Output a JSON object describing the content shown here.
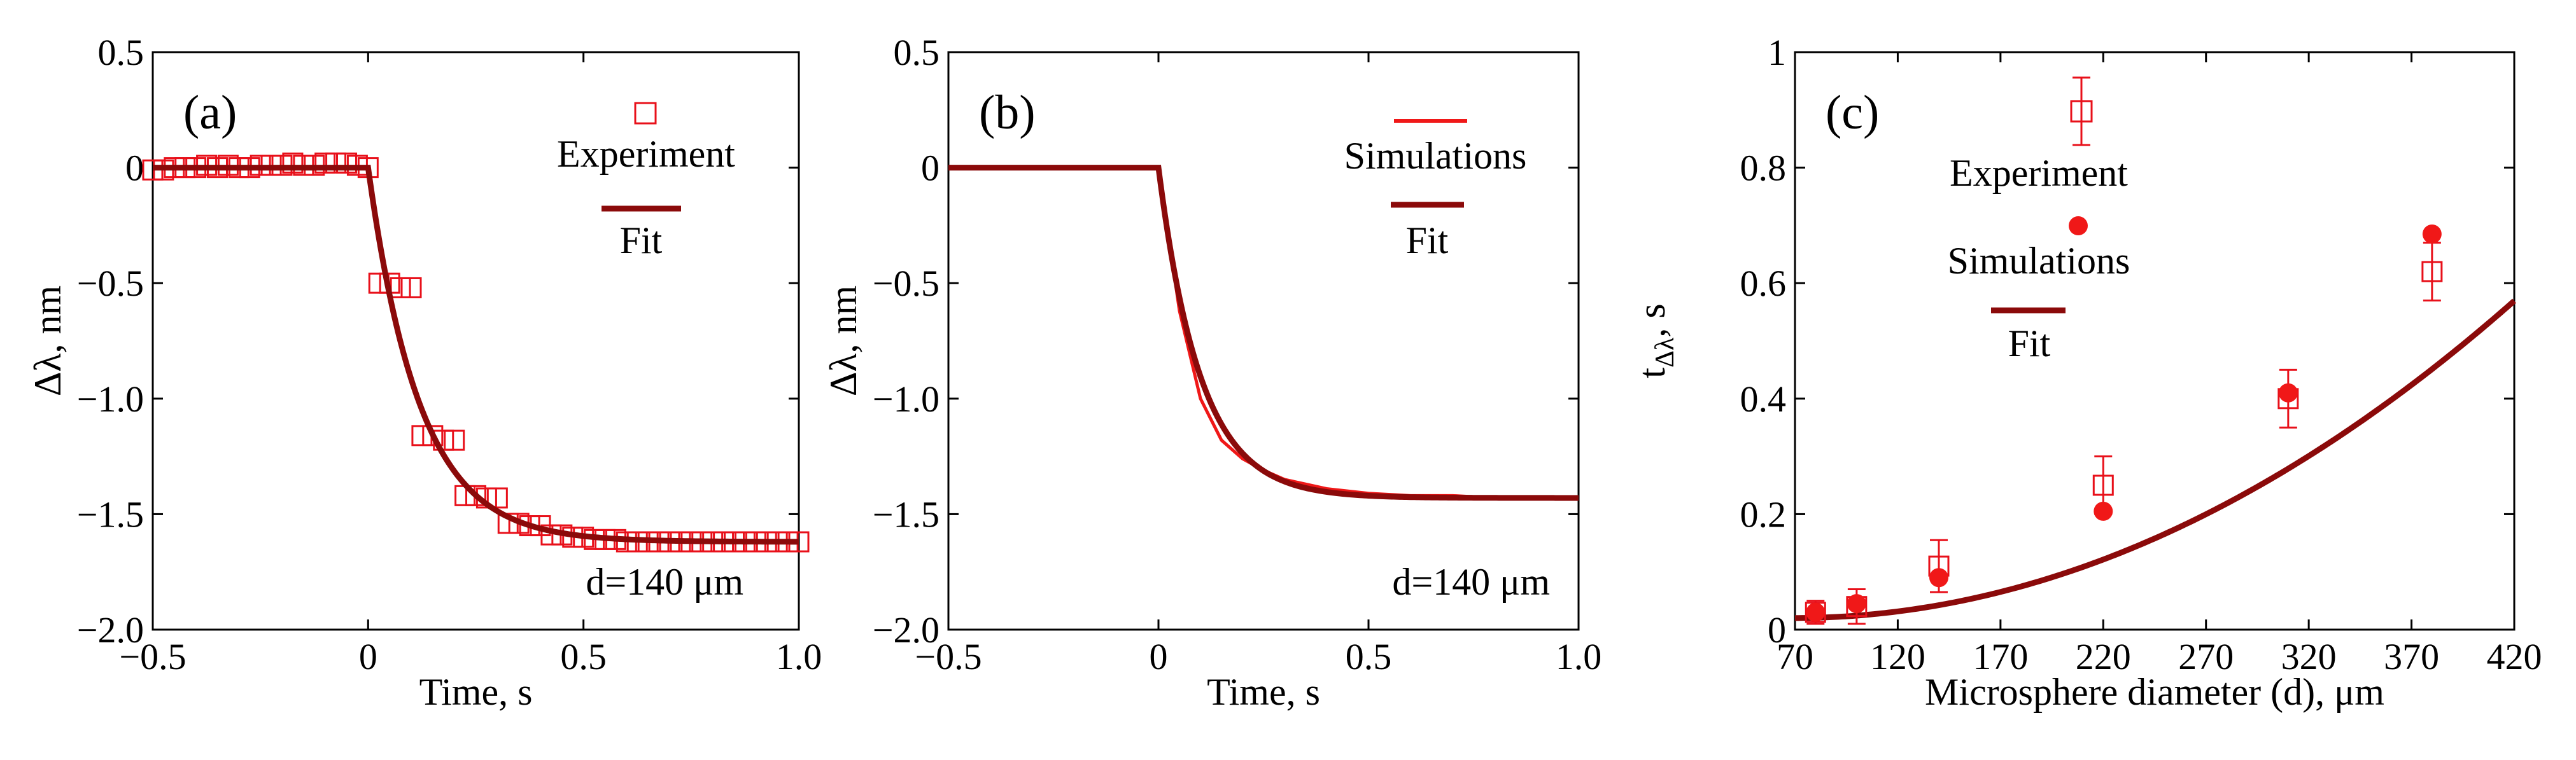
{
  "colors": {
    "experiment": "#e8101a",
    "simulation": "#f01818",
    "fit": "#8b0a0a",
    "axis": "#000000"
  },
  "chart_data": [
    {
      "type": "scatter",
      "panel_label": "(a)",
      "xlabel": "Time, s",
      "ylabel": "Δλ, nm",
      "xlim": [
        -0.5,
        1.0
      ],
      "ylim": [
        -2.0,
        0.5
      ],
      "xticks": [
        -0.5,
        0,
        0.5,
        1.0
      ],
      "xtick_labels": [
        "−0.5",
        "0",
        "0.5",
        "1.0"
      ],
      "yticks": [
        -2.0,
        -1.5,
        -1.0,
        -0.5,
        0,
        0.5
      ],
      "ytick_labels": [
        "−2.0",
        "−1.5",
        "−1.0",
        "−0.5",
        "0",
        "0.5"
      ],
      "annotation": "d=140 μm",
      "legend": [
        "Experiment",
        "Fit"
      ],
      "series": [
        {
          "name": "Experiment",
          "marker": "open-square",
          "x": [
            -0.5,
            -0.475,
            -0.45,
            -0.425,
            -0.4,
            -0.375,
            -0.35,
            -0.325,
            -0.3,
            -0.275,
            -0.25,
            -0.225,
            -0.2,
            -0.175,
            -0.15,
            -0.125,
            -0.1,
            -0.075,
            -0.05,
            -0.025,
            0.0,
            0.025,
            0.05,
            0.075,
            0.1,
            0.125,
            0.15,
            0.175,
            0.2,
            0.225,
            0.25,
            0.275,
            0.3,
            0.325,
            0.35,
            0.375,
            0.4,
            0.425,
            0.45,
            0.475,
            0.5,
            0.525,
            0.55,
            0.575,
            0.6,
            0.625,
            0.65,
            0.675,
            0.7,
            0.725,
            0.75,
            0.775,
            0.8,
            0.825,
            0.85,
            0.875,
            0.9,
            0.925,
            0.95,
            0.975,
            1.0
          ],
          "y": [
            -0.01,
            -0.01,
            0.0,
            0.0,
            0.0,
            0.01,
            0.0,
            0.01,
            0.0,
            0.0,
            0.01,
            0.01,
            0.01,
            0.02,
            0.01,
            0.01,
            0.02,
            0.02,
            0.02,
            0.01,
            0.0,
            -0.5,
            -0.5,
            -0.52,
            -0.52,
            -1.16,
            -1.16,
            -1.18,
            -1.18,
            -1.42,
            -1.42,
            -1.43,
            -1.43,
            -1.54,
            -1.54,
            -1.55,
            -1.55,
            -1.59,
            -1.59,
            -1.6,
            -1.6,
            -1.61,
            -1.61,
            -1.61,
            -1.62,
            -1.62,
            -1.62,
            -1.62,
            -1.62,
            -1.62,
            -1.62,
            -1.62,
            -1.62,
            -1.62,
            -1.62,
            -1.62,
            -1.62,
            -1.62,
            -1.62,
            -1.62,
            -1.62
          ]
        },
        {
          "name": "Fit",
          "kind": "line",
          "x_start": 0.0,
          "x_end": 1.0,
          "plateau_before": 0.0,
          "amplitude": -1.62,
          "tau": 0.12
        }
      ]
    },
    {
      "type": "line",
      "panel_label": "(b)",
      "xlabel": "Time, s",
      "ylabel": "Δλ, nm",
      "xlim": [
        -0.5,
        1.0
      ],
      "ylim": [
        -2.0,
        0.5
      ],
      "xticks": [
        -0.5,
        0,
        0.5,
        1.0
      ],
      "xtick_labels": [
        "−0.5",
        "0",
        "0.5",
        "1.0"
      ],
      "yticks": [
        -2.0,
        -1.5,
        -1.0,
        -0.5,
        0,
        0.5
      ],
      "ytick_labels": [
        "−2.0",
        "−1.5",
        "−1.0",
        "−0.5",
        "0",
        "0.5"
      ],
      "annotation": "d=140 μm",
      "legend": [
        "Simulations",
        "Fit"
      ],
      "series": [
        {
          "name": "Simulations",
          "x": [
            -0.5,
            0.0,
            0.05,
            0.1,
            0.15,
            0.2,
            0.25,
            0.3,
            0.35,
            0.4,
            0.45,
            0.5,
            0.6,
            0.7,
            0.8,
            0.9,
            1.0
          ],
          "y": [
            0.0,
            0.0,
            -0.62,
            -1.0,
            -1.18,
            -1.26,
            -1.31,
            -1.35,
            -1.37,
            -1.39,
            -1.4,
            -1.41,
            -1.42,
            -1.42,
            -1.43,
            -1.43,
            -1.43
          ]
        },
        {
          "name": "Fit",
          "kind": "line",
          "x_start": 0.0,
          "x_end": 1.0,
          "plateau_before": 0.0,
          "amplitude": -1.43,
          "tau": 0.1
        }
      ]
    },
    {
      "type": "scatter",
      "panel_label": "(c)",
      "xlabel": "Microsphere diameter (d), μm",
      "ylabel": "t",
      "ylabel_sub": "Δλ",
      "ylabel_suffix": ", s",
      "xlim": [
        70,
        420
      ],
      "ylim": [
        0,
        1
      ],
      "xticks": [
        70,
        120,
        170,
        220,
        270,
        320,
        370,
        420
      ],
      "xtick_labels": [
        "70",
        "120",
        "170",
        "220",
        "270",
        "320",
        "370",
        "420"
      ],
      "yticks": [
        0,
        0.2,
        0.4,
        0.6,
        0.8,
        1
      ],
      "ytick_labels": [
        "0",
        "0.2",
        "0.4",
        "0.6",
        "0.8",
        "1"
      ],
      "legend": [
        "Experiment",
        "Simulations",
        "Fit"
      ],
      "series": [
        {
          "name": "Experiment",
          "marker": "open-square-errorbar",
          "x": [
            80,
            100,
            140,
            220,
            310,
            380
          ],
          "y": [
            0.03,
            0.04,
            0.11,
            0.25,
            0.4,
            0.62
          ],
          "err": [
            0.02,
            0.03,
            0.045,
            0.05,
            0.05,
            0.05
          ]
        },
        {
          "name": "Simulations",
          "marker": "filled-circle",
          "x": [
            80,
            100,
            140,
            220,
            310,
            380
          ],
          "y": [
            0.03,
            0.045,
            0.09,
            0.205,
            0.41,
            0.685
          ]
        },
        {
          "name": "Fit",
          "kind": "line",
          "x_start": 70,
          "x_end": 420,
          "coeffs": [
            0.0201,
            4.7e-06,
            4.47e-06
          ]
        }
      ]
    }
  ]
}
